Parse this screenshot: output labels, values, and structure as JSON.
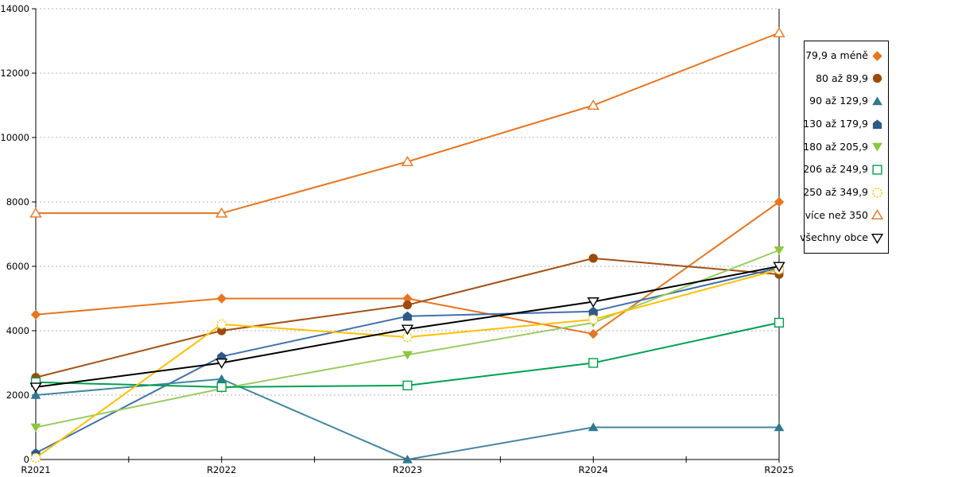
{
  "chart_data": {
    "type": "line",
    "title": "",
    "xlabel": "",
    "ylabel": "",
    "categories": [
      "R2021",
      "R2022",
      "R2023",
      "R2024",
      "R2025"
    ],
    "ylim": [
      0,
      14000
    ],
    "ytick_interval": 2000,
    "ytick_labels": [
      "0",
      "2000",
      "4000",
      "6000",
      "8000",
      "10000",
      "12000",
      "14000"
    ],
    "grid": "horizontal-dashed",
    "legend_position": "right",
    "series": [
      {
        "name": "79,9 a méně",
        "marker": "diamond",
        "marker_style": "filled",
        "color": "#E8751F",
        "line_color": "#E8751F",
        "values": [
          4500,
          5000,
          5000,
          3900,
          8000
        ]
      },
      {
        "name": "80 až 89,9",
        "marker": "circle",
        "marker_style": "filled",
        "color": "#9C4A08",
        "line_color": "#A35117",
        "values": [
          2550,
          4000,
          4800,
          6250,
          5750
        ]
      },
      {
        "name": "90 až 129,9",
        "marker": "triangle-up",
        "marker_style": "filled",
        "color": "#31798F",
        "line_color": "#4486A2",
        "values": [
          2000,
          2500,
          0,
          1000,
          1000
        ]
      },
      {
        "name": "130 až 179,9",
        "marker": "pentagon",
        "marker_style": "filled",
        "color": "#2D5A87",
        "line_color": "#4170AC",
        "values": [
          200,
          3200,
          4450,
          4600,
          5950
        ]
      },
      {
        "name": "180 až 205,9",
        "marker": "triangle-down",
        "marker_style": "filled",
        "color": "#8DC63F",
        "line_color": "#9ACC62",
        "values": [
          1000,
          2200,
          3250,
          4250,
          6500
        ]
      },
      {
        "name": "206 až 249,9",
        "marker": "square",
        "marker_style": "open",
        "color": "#00A04E",
        "line_color": "#00A04E",
        "values": [
          2400,
          2250,
          2300,
          3000,
          4250
        ]
      },
      {
        "name": "250 až 349,9",
        "marker": "circle",
        "marker_style": "open-dashed",
        "color": "#FFC000",
        "line_color": "#FFC000",
        "values": [
          50,
          4200,
          3800,
          4350,
          5900
        ]
      },
      {
        "name": "více než 350",
        "marker": "triangle-up",
        "marker_style": "open",
        "color": "#E8751F",
        "line_color": "#E8751F",
        "values": [
          7650,
          7650,
          9250,
          11000,
          13250
        ]
      },
      {
        "name": "všechny obce",
        "marker": "triangle-down",
        "marker_style": "open",
        "color": "#000000",
        "line_color": "#000000",
        "values": [
          2250,
          3000,
          4050,
          4900,
          6000
        ]
      }
    ]
  },
  "colors": {
    "background": "#FFFFFF",
    "grid": "#B3B3B3",
    "axis": "#000000",
    "legend_border": "#000000",
    "label_text": "#000000"
  }
}
